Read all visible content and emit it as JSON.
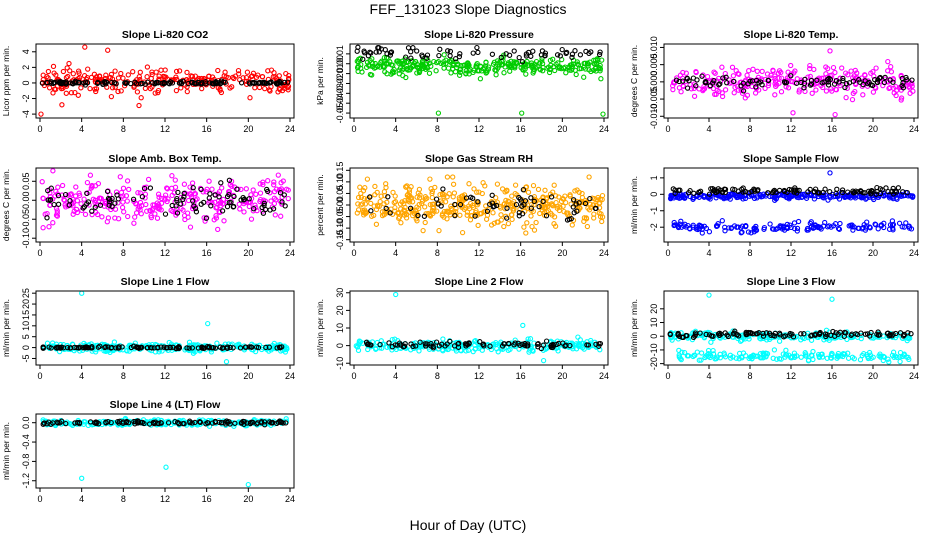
{
  "figure": {
    "title": "FEF_131023  Slope Diagnostics",
    "xlabel": "Hour of Day (UTC)"
  },
  "chart_data": [
    {
      "type": "scatter",
      "title": "Slope Li-820 CO2",
      "ylabel": "Licor ppm per min.",
      "xlim": [
        0,
        24
      ],
      "xticks": [
        0,
        4,
        8,
        12,
        16,
        20,
        24
      ],
      "ylim": [
        -4.5,
        5
      ],
      "yticks": [
        -4,
        -2,
        0,
        2,
        4
      ],
      "yticklabels": [
        "-4",
        "-2",
        "0",
        "2",
        "4"
      ],
      "series": [
        {
          "color": "#ff0000",
          "x_range": [
            0.2,
            23.9
          ],
          "center": 0.3,
          "spread": 1.0,
          "count": 260,
          "outliers": [
            [
              4.3,
              4.6
            ],
            [
              6.5,
              4.2
            ],
            [
              2.1,
              -2.8
            ],
            [
              9.5,
              -2.9
            ],
            [
              0.1,
              -4.0
            ],
            [
              23.6,
              1.2
            ]
          ]
        },
        {
          "color": "#000000",
          "x_range": [
            0.2,
            23.9
          ],
          "center": 0.0,
          "spread": 0.12,
          "count": 140,
          "outliers": []
        }
      ]
    },
    {
      "type": "scatter",
      "title": "Slope Li-820 Pressure",
      "ylabel": "kPa per min.",
      "xlim": [
        0,
        24
      ],
      "xticks": [
        0,
        4,
        8,
        12,
        16,
        20,
        24
      ],
      "ylim": [
        -0.055,
        0.02
      ],
      "yticks": [
        -0.05,
        -0.04,
        -0.03,
        -0.02,
        -0.01,
        0.0,
        0.01
      ],
      "yticklabels": [
        "-0.05",
        "-0.04",
        "-0.03",
        "-0.02",
        "-0.01",
        "0.00",
        "0.01"
      ],
      "series": [
        {
          "color": "#00cc00",
          "x_range": [
            0.3,
            23.9
          ],
          "center": -0.002,
          "spread": 0.006,
          "count": 320,
          "outliers": [
            [
              8.1,
              -0.05
            ],
            [
              16.1,
              -0.05
            ],
            [
              23.9,
              -0.051
            ]
          ]
        },
        {
          "color": "#000000",
          "x_range": [
            0.3,
            23.9
          ],
          "center": 0.01,
          "spread": 0.004,
          "count": 70,
          "outliers": []
        }
      ]
    },
    {
      "type": "scatter",
      "title": "Slope Li-820 Temp.",
      "ylabel": "degrees C per min.",
      "xlim": [
        0,
        24
      ],
      "xticks": [
        0,
        4,
        8,
        12,
        16,
        20,
        24
      ],
      "ylim": [
        -0.0105,
        0.011
      ],
      "yticks": [
        -0.01,
        -0.005,
        0.0,
        0.005,
        0.01
      ],
      "yticklabels": [
        "-0.010",
        "-0.005",
        "0.000",
        "0.005",
        "0.010"
      ],
      "series": [
        {
          "color": "#ff00ff",
          "x_range": [
            0.4,
            23.9
          ],
          "center": 0.0,
          "spread": 0.003,
          "count": 260,
          "outliers": [
            [
              15.8,
              0.009
            ],
            [
              12.2,
              -0.009
            ],
            [
              16.3,
              -0.0095
            ]
          ]
        },
        {
          "color": "#000000",
          "x_range": [
            0.4,
            23.9
          ],
          "center": 0.0,
          "spread": 0.0012,
          "count": 90,
          "outliers": []
        }
      ]
    },
    {
      "type": "scatter",
      "title": "Slope Amb. Box Temp.",
      "ylabel": "degrees C per min.",
      "xlim": [
        0,
        24
      ],
      "xticks": [
        0,
        4,
        8,
        12,
        16,
        20,
        24
      ],
      "ylim": [
        -0.11,
        0.085
      ],
      "yticks": [
        -0.1,
        -0.05,
        0.0,
        0.05
      ],
      "yticklabels": [
        "-0.10",
        "-0.05",
        "0.00",
        "0.05"
      ],
      "series": [
        {
          "color": "#ff00ff",
          "x_range": [
            0.2,
            23.9
          ],
          "center": 0.0,
          "spread": 0.04,
          "count": 300,
          "outliers": []
        },
        {
          "color": "#000000",
          "x_range": [
            0.2,
            23.9
          ],
          "center": 0.0,
          "spread": 0.025,
          "count": 90,
          "outliers": []
        }
      ]
    },
    {
      "type": "scatter",
      "title": "Slope Gas Stream RH",
      "ylabel": "percent per min.",
      "xlim": [
        0,
        24
      ],
      "xticks": [
        0,
        4,
        8,
        12,
        16,
        20,
        24
      ],
      "ylim": [
        -0.16,
        0.16
      ],
      "yticks": [
        -0.15,
        -0.1,
        -0.05,
        0.0,
        0.05,
        0.1,
        0.15
      ],
      "yticklabels": [
        "-0.15",
        "-0.10",
        "-0.05",
        "0.00",
        "0.05",
        "0.10",
        "0.15"
      ],
      "series": [
        {
          "color": "#ffa500",
          "x_range": [
            0.2,
            23.9
          ],
          "center": 0.0,
          "spread": 0.055,
          "count": 420,
          "outliers": []
        },
        {
          "color": "#000000",
          "x_range": [
            1.5,
            23.9
          ],
          "center": 0.0,
          "spread": 0.04,
          "count": 60,
          "outliers": []
        }
      ]
    },
    {
      "type": "scatter",
      "title": "Slope Sample Flow",
      "ylabel": "ml/min per min.",
      "xlim": [
        0,
        24
      ],
      "xticks": [
        0,
        4,
        8,
        12,
        16,
        20,
        24
      ],
      "ylim": [
        -2.9,
        1.6
      ],
      "yticks": [
        -2,
        -1,
        0,
        1
      ],
      "yticklabels": [
        "-2",
        "-1",
        "0",
        "1"
      ],
      "series": [
        {
          "color": "#0000ff",
          "x_range": [
            0.2,
            23.9
          ],
          "center": -0.1,
          "spread": 0.12,
          "count": 260,
          "outliers": [
            [
              15.8,
              1.3
            ]
          ]
        },
        {
          "color": "#0000ff",
          "x_range": [
            0.5,
            23.9
          ],
          "center": -2.0,
          "spread": 0.18,
          "count": 150,
          "outliers": []
        },
        {
          "color": "#000000",
          "x_range": [
            0.2,
            23.9
          ],
          "center": 0.2,
          "spread": 0.12,
          "count": 110,
          "outliers": []
        }
      ]
    },
    {
      "type": "scatter",
      "title": "Slope Line 1 Flow",
      "ylabel": "ml/min per min.",
      "xlim": [
        0,
        24
      ],
      "xticks": [
        0,
        4,
        8,
        12,
        16,
        20,
        24
      ],
      "ylim": [
        -8,
        26
      ],
      "yticks": [
        -5,
        0,
        5,
        10,
        15,
        20,
        25
      ],
      "yticklabels": [
        "-5",
        "0",
        "5",
        "10",
        "15",
        "20",
        "25"
      ],
      "series": [
        {
          "color": "#00ffff",
          "x_range": [
            0.2,
            23.9
          ],
          "center": 0.0,
          "spread": 1.4,
          "count": 260,
          "outliers": [
            [
              4.0,
              25.0
            ],
            [
              16.1,
              11.0
            ],
            [
              17.9,
              -6.5
            ]
          ]
        },
        {
          "color": "#000000",
          "x_range": [
            0.2,
            23.9
          ],
          "center": 0.0,
          "spread": 0.3,
          "count": 110,
          "outliers": []
        }
      ]
    },
    {
      "type": "scatter",
      "title": "Slope Line 2 Flow",
      "ylabel": "ml/min per min.",
      "xlim": [
        0,
        24
      ],
      "xticks": [
        0,
        4,
        8,
        12,
        16,
        20,
        24
      ],
      "ylim": [
        -11,
        31
      ],
      "yticks": [
        -10,
        0,
        10,
        20,
        30
      ],
      "yticklabels": [
        "-10",
        "0",
        "10",
        "20",
        "30"
      ],
      "series": [
        {
          "color": "#00ffff",
          "x_range": [
            0.2,
            23.9
          ],
          "center": 0.0,
          "spread": 2.2,
          "count": 260,
          "outliers": [
            [
              4.0,
              29.0
            ],
            [
              16.2,
              11.5
            ],
            [
              18.2,
              -8.5
            ]
          ]
        },
        {
          "color": "#000000",
          "x_range": [
            1.0,
            23.9
          ],
          "center": 0.5,
          "spread": 1.1,
          "count": 90,
          "outliers": []
        }
      ]
    },
    {
      "type": "scatter",
      "title": "Slope Line 3 Flow",
      "ylabel": "ml/min per min.",
      "xlim": [
        0,
        24
      ],
      "xticks": [
        0,
        4,
        8,
        12,
        16,
        20,
        24
      ],
      "ylim": [
        -21,
        33
      ],
      "yticks": [
        -20,
        -10,
        0,
        10,
        20
      ],
      "yticklabels": [
        "-20",
        "-10",
        "0",
        "10",
        "20"
      ],
      "series": [
        {
          "color": "#00ffff",
          "x_range": [
            0.2,
            23.9
          ],
          "center": 0.0,
          "spread": 2.0,
          "count": 200,
          "outliers": [
            [
              4.0,
              30.0
            ],
            [
              16.0,
              27.0
            ]
          ]
        },
        {
          "color": "#00ffff",
          "x_range": [
            0.5,
            23.9
          ],
          "center": -14.5,
          "spread": 2.2,
          "count": 160,
          "outliers": []
        },
        {
          "color": "#000000",
          "x_range": [
            0.2,
            23.9
          ],
          "center": 1.5,
          "spread": 1.3,
          "count": 110,
          "outliers": []
        }
      ]
    },
    {
      "type": "scatter",
      "title": "Slope Line 4 (LT) Flow",
      "ylabel": "ml/min per min.",
      "xlim": [
        0,
        24
      ],
      "xticks": [
        0,
        4,
        8,
        12,
        16,
        20,
        24
      ],
      "ylim": [
        -1.35,
        0.18
      ],
      "yticks": [
        -1.2,
        -0.8,
        -0.4,
        0.0
      ],
      "yticklabels": [
        "-1.2",
        "-0.8",
        "-0.4",
        "0.0"
      ],
      "series": [
        {
          "color": "#00ffff",
          "x_range": [
            0.2,
            23.9
          ],
          "center": 0.0,
          "spread": 0.04,
          "count": 260,
          "outliers": [
            [
              4.0,
              -1.15
            ],
            [
              12.1,
              -0.92
            ],
            [
              20.0,
              -1.28
            ]
          ]
        },
        {
          "color": "#000000",
          "x_range": [
            0.2,
            23.9
          ],
          "center": 0.0,
          "spread": 0.025,
          "count": 110,
          "outliers": []
        }
      ]
    }
  ]
}
